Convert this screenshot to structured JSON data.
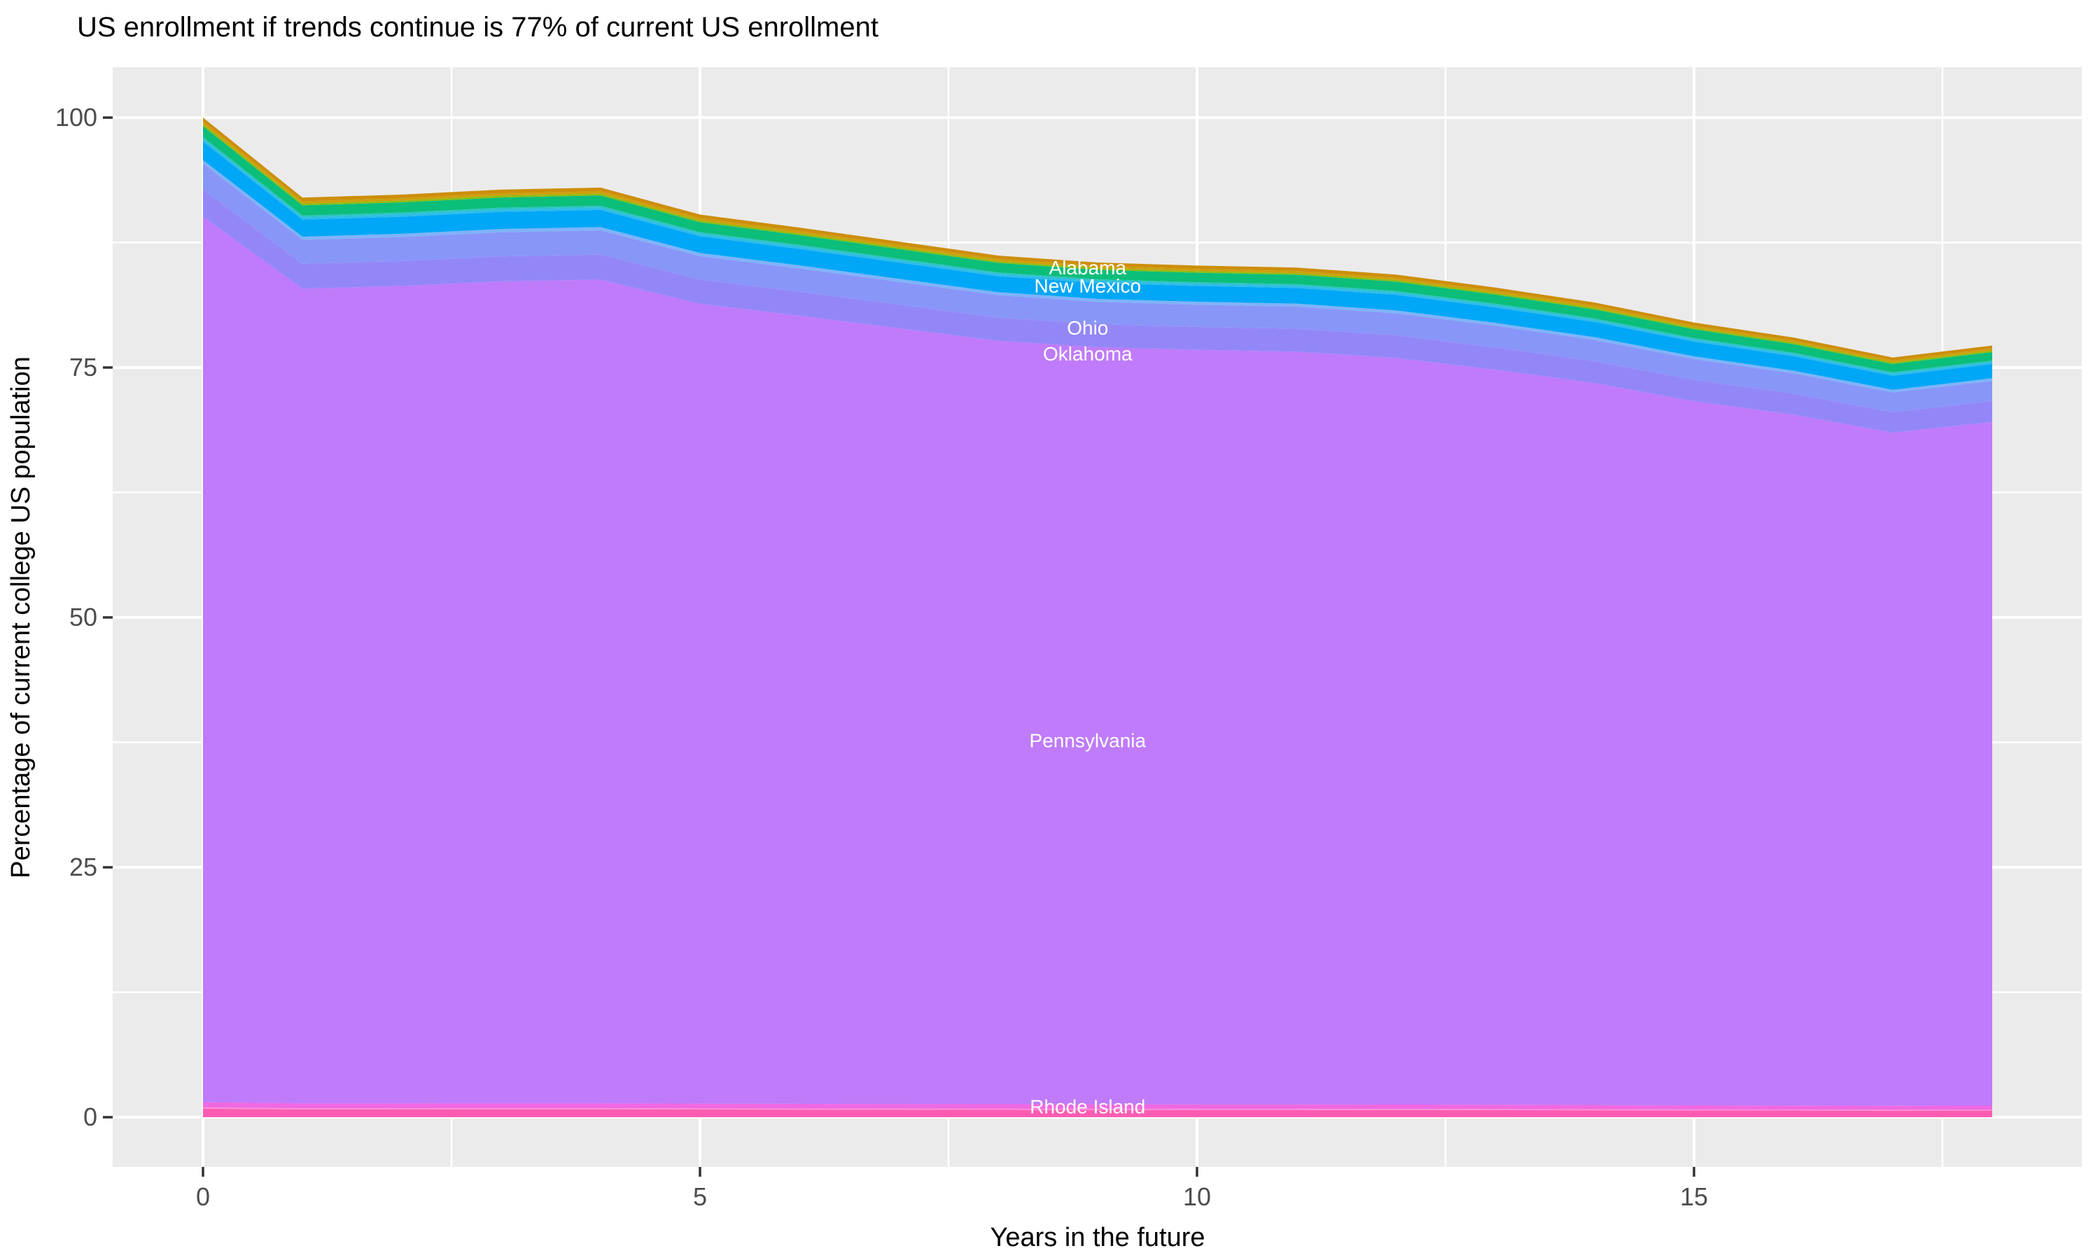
{
  "title": "US enrollment if trends continue is 77% of current US enrollment",
  "axes": {
    "x_label": "Years in the future",
    "y_label": "Percentage of current college US population"
  },
  "chart_data": {
    "type": "area",
    "stacked": true,
    "title": "US enrollment if trends continue is 77% of current US enrollment",
    "xlabel": "Years in the future",
    "ylabel": "Percentage of current college US population",
    "xlim": [
      0,
      18
    ],
    "ylim": [
      0,
      100
    ],
    "x_ticks": [
      0,
      5,
      10,
      15
    ],
    "y_ticks": [
      0,
      25,
      50,
      75,
      100
    ],
    "x_minor": [
      2.5,
      7.5,
      12.5,
      17.5
    ],
    "y_minor": [
      12.5,
      37.5,
      62.5,
      87.5
    ],
    "grid": true,
    "panel_bg": "#EBEBEB",
    "grid_color": "#FFFFFF",
    "tick_color": "#333333",
    "tick_label_color": "#4D4D4D",
    "area_label_color": "#FFFFFF",
    "x": [
      0,
      1,
      2,
      3,
      4,
      5,
      6,
      7,
      8,
      9,
      10,
      11,
      12,
      13,
      14,
      15,
      16,
      17,
      18
    ],
    "total_top": [
      100,
      92.0,
      92.3,
      92.8,
      93.0,
      90.3,
      89.0,
      87.6,
      86.2,
      85.5,
      85.2,
      85.0,
      84.3,
      83.0,
      81.5,
      79.5,
      78.0,
      76.0,
      77.2
    ],
    "bands": [
      {
        "name": "rhode-island-hotpink",
        "color": "#FB5CB2",
        "from": 0.0,
        "to": 0.0085
      },
      {
        "name": "light-pink-strip",
        "color": "#FF8FD6",
        "from": 0.0085,
        "to": 0.0098
      },
      {
        "name": "magenta-strip",
        "color": "#F068E2",
        "from": 0.0098,
        "to": 0.015
      },
      {
        "name": "pennsylvania-purple",
        "color": "#BF7BFA",
        "from": 0.015,
        "to": 0.901
      },
      {
        "name": "oklahoma-periwinkle",
        "color": "#9387F8",
        "from": 0.901,
        "to": 0.928
      },
      {
        "name": "ohio-periwinkle",
        "color": "#8896F8",
        "from": 0.928,
        "to": 0.954
      },
      {
        "name": "pale-blue-strip",
        "color": "#7FB3F8",
        "from": 0.954,
        "to": 0.9575
      },
      {
        "name": "new-mexico-blue",
        "color": "#00A7F6",
        "from": 0.9575,
        "to": 0.976
      },
      {
        "name": "cyan-strip",
        "color": "#2CBDE8",
        "from": 0.976,
        "to": 0.9785
      },
      {
        "name": "teal-strip",
        "color": "#2BC4C4",
        "from": 0.9785,
        "to": 0.9805
      },
      {
        "name": "green-band",
        "color": "#0BBE79",
        "from": 0.9805,
        "to": 0.9915
      },
      {
        "name": "yellow-green-strip",
        "color": "#8FBC13",
        "from": 0.9915,
        "to": 0.9935
      },
      {
        "name": "amber-inner",
        "color": "#CFA00C",
        "from": 0.9935,
        "to": 0.996
      },
      {
        "name": "amber-top-alabama",
        "color": "#CD8E0A",
        "from": 0.996,
        "to": 1.0
      }
    ],
    "area_labels": [
      {
        "text": "Alabama",
        "x": 8.9,
        "y": 85.0
      },
      {
        "text": "New Mexico",
        "x": 8.9,
        "y": 83.2
      },
      {
        "text": "Ohio",
        "x": 8.9,
        "y": 79.0
      },
      {
        "text": "Oklahoma",
        "x": 8.9,
        "y": 76.4
      },
      {
        "text": "Pennsylvania",
        "x": 8.9,
        "y": 37.7
      },
      {
        "text": "Rhode Island",
        "x": 8.9,
        "y": 1.1
      }
    ]
  }
}
